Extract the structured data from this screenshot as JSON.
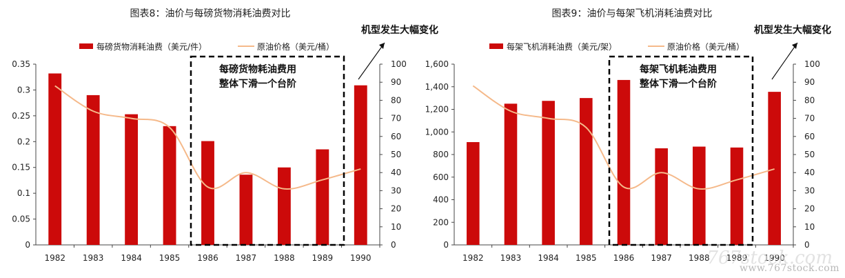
{
  "chart_data": [
    {
      "type": "bar",
      "title": "图表8：油价与每磅货物消耗油费对比",
      "categories": [
        "1982",
        "1983",
        "1984",
        "1985",
        "1986",
        "1987",
        "1988",
        "1989",
        "1990"
      ],
      "series": [
        {
          "name": "每磅货物消耗油费（美元/件）",
          "type": "bar",
          "axis": "left",
          "values": [
            0.332,
            0.29,
            0.253,
            0.23,
            0.201,
            0.136,
            0.15,
            0.185,
            0.309
          ]
        },
        {
          "name": "原油价格（美元/桶）",
          "type": "line",
          "axis": "right",
          "values": [
            88,
            74,
            70,
            65,
            32,
            40,
            31,
            36,
            42
          ]
        }
      ],
      "ylim_left": [
        0,
        0.35
      ],
      "yticks_left": [
        "0",
        "0.05",
        "0.1",
        "0.15",
        "0.2",
        "0.25",
        "0.3",
        "0.35"
      ],
      "ylim_right": [
        0,
        100
      ],
      "yticks_right": [
        "0",
        "10",
        "20",
        "30",
        "40",
        "50",
        "60",
        "70",
        "80",
        "90",
        "100"
      ],
      "annotation_box_lines": [
        "每磅货物耗油费用",
        "整体下滑一个台阶"
      ],
      "annotation_arrow_text": "机型发生大幅变化",
      "colors": {
        "bar": "#cc0a0a",
        "line": "#f5b98a",
        "box": "#000000"
      },
      "legend_position": "top"
    },
    {
      "type": "bar",
      "title": "图表9：油价与每架飞机消耗油费对比",
      "categories": [
        "1982",
        "1983",
        "1984",
        "1985",
        "1986",
        "1987",
        "1988",
        "1989",
        "1990"
      ],
      "series": [
        {
          "name": "每架飞机消耗油费（美元/架）",
          "type": "bar",
          "axis": "left",
          "values": [
            910,
            1250,
            1275,
            1300,
            1460,
            855,
            870,
            862,
            1355
          ]
        },
        {
          "name": "原油价格（美元/桶）",
          "type": "line",
          "axis": "right",
          "values": [
            88,
            74,
            70,
            65,
            32,
            40,
            31,
            36,
            42
          ]
        }
      ],
      "ylim_left": [
        0,
        1600
      ],
      "yticks_left": [
        "0",
        "200",
        "400",
        "600",
        "800",
        "1,000",
        "1,200",
        "1,400",
        "1,600"
      ],
      "ylim_right": [
        0,
        100
      ],
      "yticks_right": [
        "0",
        "10",
        "20",
        "30",
        "40",
        "50",
        "60",
        "70",
        "80",
        "90",
        "100"
      ],
      "annotation_box_lines": [
        "每架飞机耗油费用",
        "整体下滑一个台阶"
      ],
      "annotation_arrow_text": "机型发生大幅变化",
      "colors": {
        "bar": "#cc0a0a",
        "line": "#f5b98a",
        "box": "#000000"
      },
      "legend_position": "top"
    }
  ],
  "watermark": {
    "big": "767stock.com",
    "small": "www.767stock.com"
  }
}
